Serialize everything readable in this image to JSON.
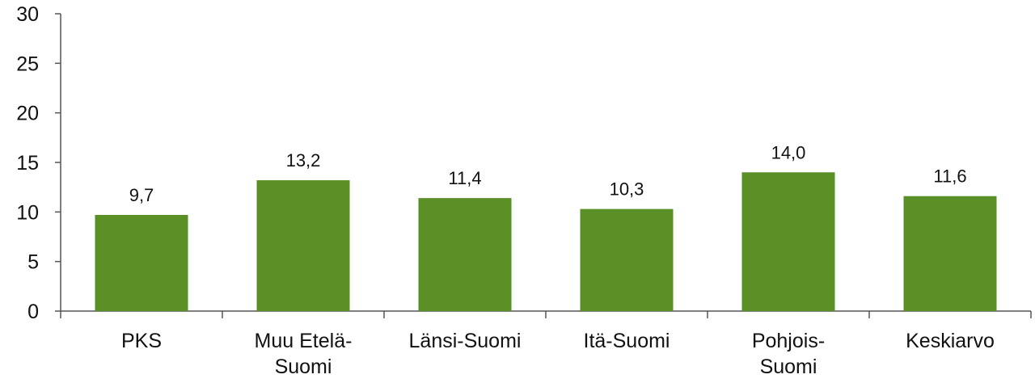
{
  "chart_data": {
    "type": "bar",
    "categories": [
      [
        "PKS"
      ],
      [
        "Muu Etelä-",
        "Suomi"
      ],
      [
        "Länsi-Suomi"
      ],
      [
        "Itä-Suomi"
      ],
      [
        "Pohjois-",
        "Suomi"
      ],
      [
        "Keskiarvo"
      ]
    ],
    "values": [
      9.7,
      13.2,
      11.4,
      10.3,
      14.0,
      11.6
    ],
    "value_labels": [
      "9,7",
      "13,2",
      "11,4",
      "10,3",
      "14,0",
      "11,6"
    ],
    "ylim": [
      0,
      30
    ],
    "yticks": [
      0,
      5,
      10,
      15,
      20,
      25,
      30
    ],
    "title": "",
    "xlabel": "",
    "ylabel": "",
    "grid": false,
    "legend": "none",
    "colors": {
      "bar": "#5a8f25",
      "axis": "#555555"
    }
  }
}
